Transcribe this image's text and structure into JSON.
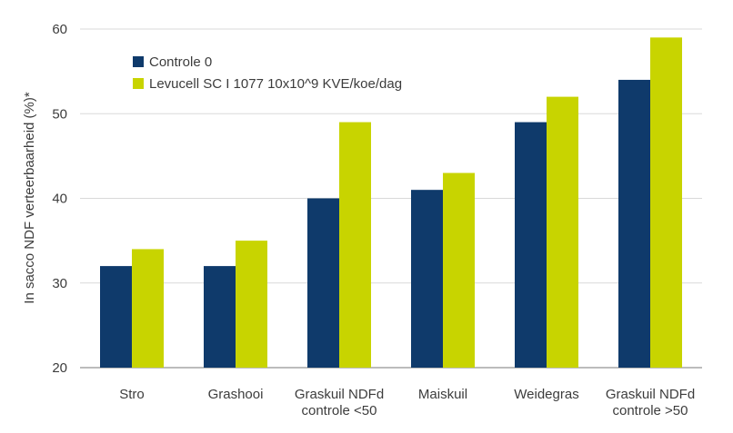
{
  "chart_data": {
    "type": "bar",
    "title": "",
    "xlabel": "",
    "ylabel": "In sacco NDF verteerbaarheid (%)*",
    "ylim": [
      20,
      60
    ],
    "yticks": [
      20,
      30,
      40,
      50,
      60
    ],
    "grid": true,
    "legend_position": "top-left",
    "categories": [
      [
        "Stro"
      ],
      [
        "Grashooi"
      ],
      [
        "Graskuil NDFd",
        "controle <50"
      ],
      [
        "Maiskuil"
      ],
      [
        "Weidegras"
      ],
      [
        "Graskuil NDFd",
        "controle >50"
      ]
    ],
    "series": [
      {
        "name": "Controle 0",
        "color": "#0f3a6b",
        "values": [
          32,
          32,
          40,
          41,
          49,
          54
        ]
      },
      {
        "name": "Levucell SC I 1077 10x10^9 KVE/koe/dag",
        "color": "#c8d400",
        "values": [
          34,
          35,
          49,
          43,
          52,
          59
        ]
      }
    ]
  }
}
